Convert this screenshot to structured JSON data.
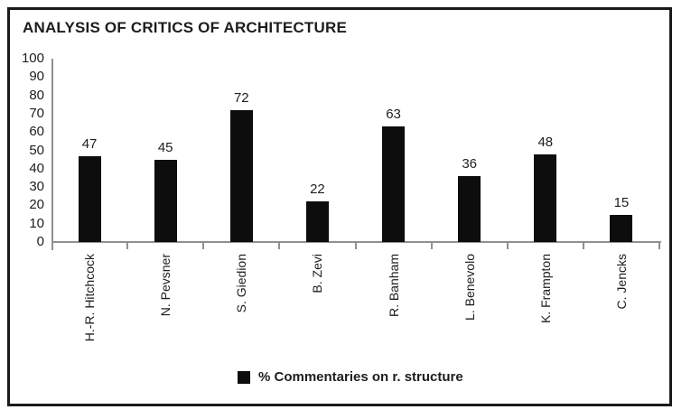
{
  "chart_data": {
    "type": "bar",
    "title": "ANALYSIS OF CRITICS OF ARCHITECTURE",
    "categories": [
      "H.-R. Hitchcock",
      "N. Pevsner",
      "S. Giedion",
      "B. Zevi",
      "R. Banham",
      "L. Benevolo",
      "K. Frampton",
      "C. Jencks"
    ],
    "values": [
      47,
      45,
      72,
      22,
      63,
      36,
      48,
      15
    ],
    "series_name": "% Commentaries on r. structure",
    "value_labels": true,
    "ylim": [
      0,
      100
    ],
    "ytick_step": 10,
    "yticks": [
      0,
      10,
      20,
      30,
      40,
      50,
      60,
      70,
      80,
      90,
      100
    ],
    "grid": false,
    "legend_position": "bottom",
    "xlabel_rotation_deg": 90,
    "bar_color": "#0d0d0d",
    "axis_color": "#909090",
    "text_color": "#1d1d1d",
    "frame_border_color": "#1b1b1b"
  }
}
